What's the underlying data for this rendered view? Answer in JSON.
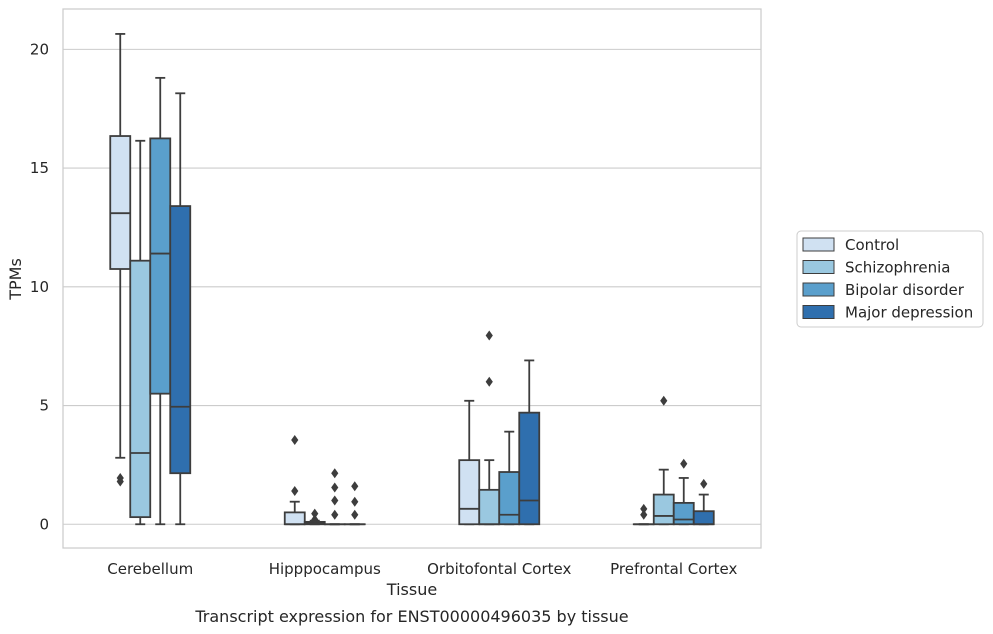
{
  "chart_data": {
    "type": "box",
    "caption": "Transcript expression for ENST00000496035 by tissue",
    "xlabel": "Tissue",
    "ylabel": "TPMs",
    "ylim": [
      -1,
      21.7
    ],
    "yticks": [
      0,
      5,
      10,
      15,
      20
    ],
    "grid": "horizontal",
    "legend_position": "right",
    "categories": [
      "Cerebellum",
      "Hipppocampus",
      "Orbitofontal Cortex",
      "Prefrontal Cortex"
    ],
    "series": [
      {
        "name": "Control",
        "color": "#d0e1f2",
        "boxes": [
          {
            "whislo": 2.8,
            "q1": 10.75,
            "med": 13.1,
            "q3": 16.35,
            "whishi": 20.65,
            "fliers": [
              1.8,
              1.95
            ]
          },
          {
            "whislo": 0.0,
            "q1": 0.0,
            "med": 0.0,
            "q3": 0.5,
            "whishi": 0.95,
            "fliers": [
              1.4,
              3.55
            ]
          },
          {
            "whislo": 0.0,
            "q1": 0.0,
            "med": 0.65,
            "q3": 2.7,
            "whishi": 5.2,
            "fliers": []
          },
          {
            "whislo": 0.0,
            "q1": 0.0,
            "med": 0.0,
            "q3": 0.0,
            "whishi": 0.0,
            "fliers": [
              0.4,
              0.65
            ]
          }
        ]
      },
      {
        "name": "Schizophrenia",
        "color": "#9ac8e0",
        "boxes": [
          {
            "whislo": 0.0,
            "q1": 0.3,
            "med": 3.0,
            "q3": 11.1,
            "whishi": 16.15,
            "fliers": []
          },
          {
            "whislo": 0.0,
            "q1": 0.0,
            "med": 0.05,
            "q3": 0.1,
            "whishi": 0.15,
            "fliers": [
              0.2,
              0.45
            ]
          },
          {
            "whislo": 0.0,
            "q1": 0.0,
            "med": 0.0,
            "q3": 1.45,
            "whishi": 2.7,
            "fliers": [
              6.0,
              7.95
            ]
          },
          {
            "whislo": 0.0,
            "q1": 0.0,
            "med": 0.35,
            "q3": 1.25,
            "whishi": 2.3,
            "fliers": [
              5.2
            ]
          }
        ]
      },
      {
        "name": "Bipolar disorder",
        "color": "#5a9fcc",
        "boxes": [
          {
            "whislo": 0.0,
            "q1": 5.5,
            "med": 11.4,
            "q3": 16.25,
            "whishi": 18.8,
            "fliers": []
          },
          {
            "whislo": 0.0,
            "q1": 0.0,
            "med": 0.0,
            "q3": 0.0,
            "whishi": 0.0,
            "fliers": [
              0.4,
              1.0,
              1.55,
              2.15
            ]
          },
          {
            "whislo": 0.0,
            "q1": 0.0,
            "med": 0.4,
            "q3": 2.2,
            "whishi": 3.9,
            "fliers": []
          },
          {
            "whislo": 0.0,
            "q1": 0.0,
            "med": 0.2,
            "q3": 0.9,
            "whishi": 1.95,
            "fliers": [
              2.55
            ]
          }
        ]
      },
      {
        "name": "Major depression",
        "color": "#2f6fae",
        "boxes": [
          {
            "whislo": 0.0,
            "q1": 2.15,
            "med": 4.95,
            "q3": 13.4,
            "whishi": 18.15,
            "fliers": []
          },
          {
            "whislo": 0.0,
            "q1": 0.0,
            "med": 0.0,
            "q3": 0.0,
            "whishi": 0.0,
            "fliers": [
              0.4,
              0.95,
              1.6
            ]
          },
          {
            "whislo": 0.0,
            "q1": 0.0,
            "med": 1.0,
            "q3": 4.7,
            "whishi": 6.9,
            "fliers": []
          },
          {
            "whislo": 0.0,
            "q1": 0.0,
            "med": 0.0,
            "q3": 0.55,
            "whishi": 1.25,
            "fliers": [
              1.7
            ]
          }
        ]
      }
    ]
  }
}
